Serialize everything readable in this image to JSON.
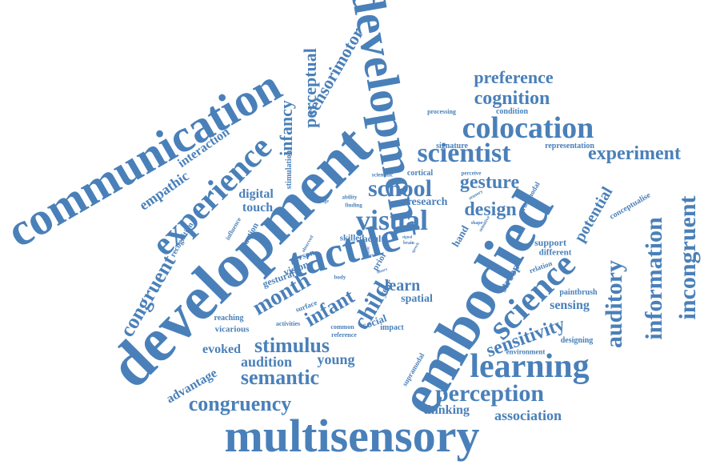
{
  "cloud": {
    "color": "#4a80b9",
    "words": {
      "development": "development",
      "embodied": "embodied",
      "communication": "communication",
      "multisensory": "multisensory",
      "tactile": "tactile",
      "experience": "experience",
      "science": "science",
      "learning": "learning",
      "colocation": "colocation",
      "scientist": "scientist",
      "visual": "visual",
      "school": "school",
      "perception": "perception",
      "auditory": "auditory",
      "information": "information",
      "incongruent": "incongruent",
      "stimulus": "stimulus",
      "congruent": "congruent",
      "semantic": "semantic",
      "congruency": "congruency",
      "month": "month",
      "child": "child",
      "infant": "infant",
      "cognition": "cognition",
      "preference": "preference",
      "experiment": "experiment",
      "design": "design",
      "gesture": "gesture",
      "sensitivity": "sensitivity",
      "association": "association",
      "sensorimotor": "sensorimotor",
      "perceptual": "perceptual",
      "infancy": "infancy",
      "empathic": "empathic",
      "interaction": "interaction",
      "potential": "potential",
      "learn": "learn",
      "young": "young",
      "audition": "audition",
      "advantage": "advantage",
      "evoked": "evoked",
      "thinking": "thinking",
      "sensing": "sensing",
      "spatial": "spatial",
      "digital": "digital",
      "touch": "touch",
      "research": "research",
      "gestural": "gestural",
      "vision": "vision",
      "person": "person",
      "social": "social",
      "stroop": "stroop",
      "hand": "hand",
      "support": "support",
      "different": "different",
      "year": "year",
      "adult": "adult",
      "skilled": "skilled",
      "prior": "prior",
      "vicarious": "vicarious",
      "reaching": "reaching",
      "impact": "impact",
      "designing": "designing",
      "environment": "environment",
      "paintbrush": "paintbrush",
      "relation": "relation",
      "conceptualise": "conceptualise",
      "supramodal": "supramodal",
      "crossmodal": "crossmodal",
      "representation": "representation",
      "signature": "signature",
      "condition": "condition",
      "processing": "processing",
      "stimulation": "stimulation",
      "recognition": "recognition",
      "action": "action",
      "influence": "influence",
      "surface": "surface",
      "activities": "activities",
      "common": "common",
      "reference": "reference",
      "cortical": "cortical",
      "scientific": "scientific",
      "perceive": "perceive",
      "ability": "ability",
      "finding": "finding",
      "change": "change",
      "sensory": "sensory",
      "shape": "shape",
      "sensitive": "sensitive",
      "observed": "observed",
      "body": "body",
      "signal": "signal",
      "world": "world",
      "brain": "brain",
      "speech": "speech",
      "theory": "theory",
      "music": "music"
    }
  }
}
